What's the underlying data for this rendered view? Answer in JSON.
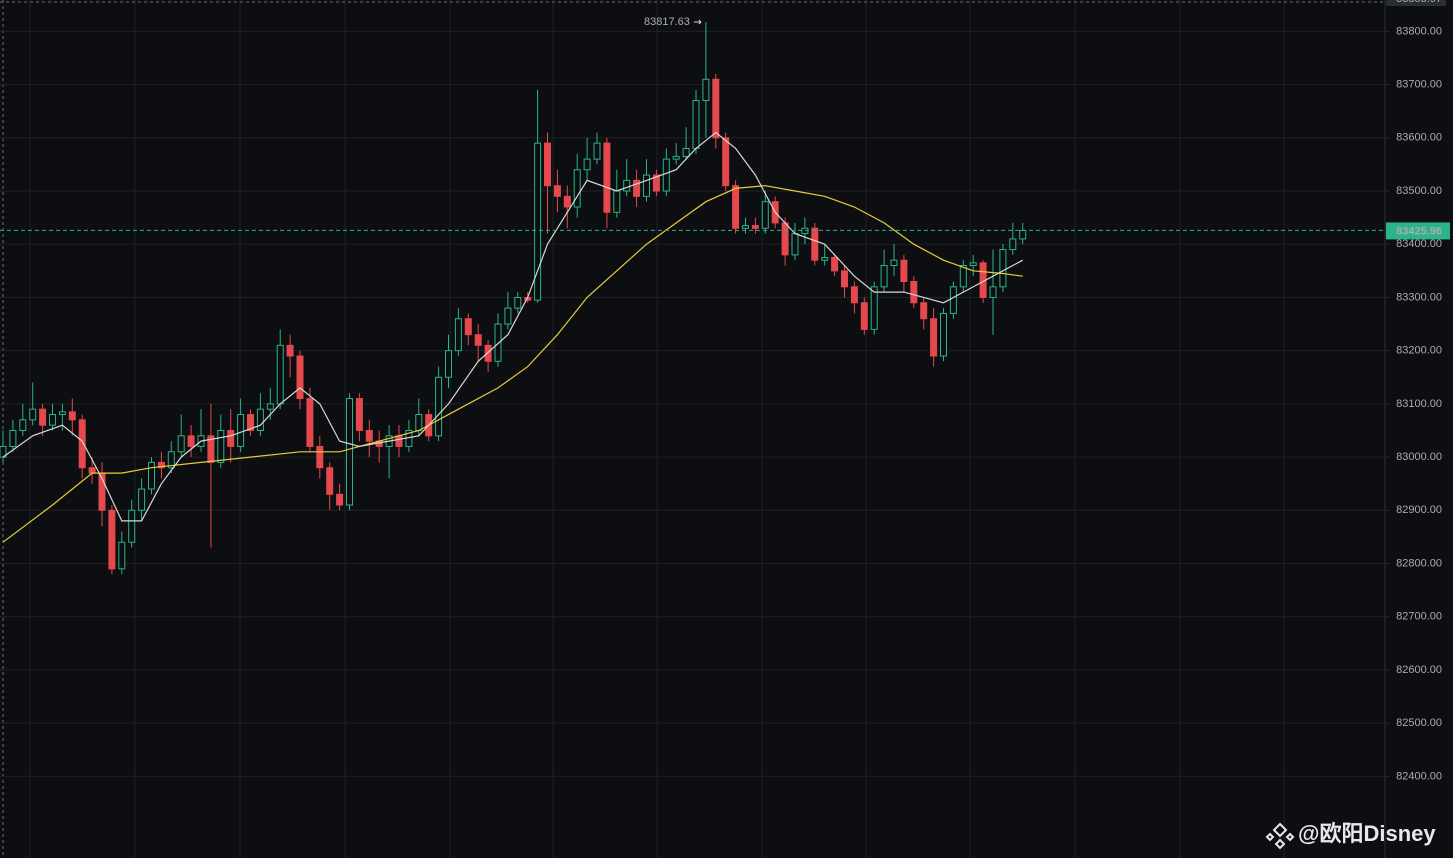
{
  "chart_data": {
    "type": "candlestick",
    "up_color": "#2bb38a",
    "down_color": "#e5484d",
    "open": [
      83000,
      83020,
      83050,
      83070,
      83090,
      83060,
      83080,
      83085,
      83070,
      82980,
      82970,
      82900,
      82790,
      82840,
      82900,
      82940,
      82990,
      82980,
      83010,
      83040,
      83020,
      83040,
      82990,
      83050,
      83020,
      83080,
      83050,
      83090,
      83100,
      83210,
      83190,
      83110,
      83020,
      82980,
      82930,
      82910,
      83110,
      83050,
      83030,
      83020,
      83040,
      83020,
      83050,
      83080,
      83040,
      83150,
      83200,
      83260,
      83230,
      83210,
      83180,
      83250,
      83280,
      83300,
      83295,
      83590,
      83510,
      83490,
      83470,
      83540,
      83560,
      83590,
      83460,
      83500,
      83520,
      83490,
      83530,
      83500,
      83560,
      83565,
      83580,
      83670,
      83710,
      83600,
      83510,
      83430,
      83435,
      83430,
      83480,
      83440,
      83380,
      83420,
      83430,
      83370,
      83375,
      83350,
      83320,
      83290,
      83240,
      83320,
      83360,
      83370,
      83330,
      83290,
      83260,
      83190,
      83270,
      83320,
      83360,
      83365,
      83300,
      83320,
      83390,
      83410
    ],
    "high": [
      83050,
      83070,
      83100,
      83140,
      83100,
      83100,
      83100,
      83110,
      83080,
      83000,
      82990,
      82910,
      82860,
      82920,
      82960,
      83000,
      83010,
      83030,
      83080,
      83060,
      83090,
      83100,
      83080,
      83090,
      83110,
      83090,
      83120,
      83130,
      83240,
      83230,
      83200,
      83130,
      83040,
      82990,
      82950,
      83120,
      83120,
      83070,
      83050,
      83060,
      83060,
      83070,
      83110,
      83090,
      83170,
      83230,
      83280,
      83270,
      83250,
      83220,
      83270,
      83310,
      83310,
      83310,
      83690,
      83610,
      83540,
      83510,
      83570,
      83600,
      83610,
      83600,
      83540,
      83560,
      83540,
      83560,
      83540,
      83580,
      83590,
      83620,
      83690,
      83817.63,
      83720,
      83610,
      83520,
      83450,
      83450,
      83500,
      83490,
      83450,
      83440,
      83450,
      83440,
      83400,
      83380,
      83360,
      83330,
      83300,
      83330,
      83390,
      83400,
      83380,
      83340,
      83300,
      83280,
      83280,
      83330,
      83370,
      83380,
      83370,
      83390,
      83400,
      83440,
      83440
    ],
    "low": [
      82990,
      83010,
      83040,
      83060,
      83040,
      83050,
      83050,
      83040,
      82960,
      82950,
      82870,
      82780,
      82780,
      82830,
      82880,
      82930,
      82960,
      82970,
      83000,
      83000,
      83010,
      82830,
      82980,
      82990,
      83010,
      83040,
      83040,
      83070,
      83090,
      83150,
      83090,
      83010,
      82960,
      82900,
      82900,
      82900,
      83030,
      83000,
      82990,
      82960,
      83000,
      83010,
      83040,
      83030,
      83030,
      83130,
      83190,
      83210,
      83180,
      83160,
      83170,
      83240,
      83270,
      83290,
      83290,
      83420,
      83460,
      83430,
      83450,
      83520,
      83550,
      83430,
      83450,
      83490,
      83470,
      83480,
      83490,
      83490,
      83550,
      83560,
      83570,
      83600,
      83580,
      83500,
      83420,
      83420,
      83420,
      83420,
      83430,
      83360,
      83370,
      83400,
      83360,
      83360,
      83340,
      83300,
      83270,
      83230,
      83230,
      83310,
      83340,
      83310,
      83280,
      83240,
      83170,
      83180,
      83260,
      83310,
      83340,
      83290,
      83230,
      83310,
      83380,
      83400
    ],
    "close": [
      83020,
      83050,
      83070,
      83090,
      83060,
      83080,
      83085,
      83070,
      82980,
      82970,
      82900,
      82790,
      82840,
      82900,
      82940,
      82990,
      82980,
      83010,
      83040,
      83020,
      83040,
      82990,
      83050,
      83020,
      83080,
      83050,
      83090,
      83100,
      83210,
      83190,
      83110,
      83020,
      82980,
      82930,
      82910,
      83110,
      83050,
      83030,
      83020,
      83040,
      83020,
      83050,
      83080,
      83040,
      83150,
      83200,
      83260,
      83230,
      83210,
      83180,
      83250,
      83280,
      83300,
      83295,
      83590,
      83510,
      83490,
      83470,
      83540,
      83560,
      83590,
      83460,
      83500,
      83520,
      83490,
      83530,
      83500,
      83560,
      83565,
      83580,
      83670,
      83710,
      83600,
      83510,
      83430,
      83435,
      83430,
      83480,
      83440,
      83380,
      83420,
      83430,
      83370,
      83375,
      83350,
      83320,
      83290,
      83240,
      83320,
      83360,
      83370,
      83330,
      83290,
      83260,
      83190,
      83270,
      83320,
      83360,
      83365,
      83300,
      83320,
      83390,
      83410,
      83425.96
    ],
    "ma_fast": {
      "color": "#d8d8d8",
      "x": [
        0,
        3,
        6,
        8,
        10,
        12,
        14,
        16,
        18,
        20,
        23,
        26,
        28,
        30,
        32,
        34,
        36,
        39,
        42,
        45,
        48,
        51,
        53,
        55,
        57,
        59,
        62,
        65,
        68,
        70,
        72,
        74,
        76,
        78,
        80,
        83,
        86,
        88,
        91,
        93,
        95,
        97,
        99,
        101,
        103
      ],
      "values": [
        83000,
        83040,
        83060,
        83030,
        82960,
        82880,
        82880,
        82950,
        83000,
        83030,
        83040,
        83060,
        83100,
        83130,
        83100,
        83030,
        83020,
        83030,
        83040,
        83100,
        83180,
        83230,
        83300,
        83400,
        83460,
        83520,
        83500,
        83520,
        83540,
        83580,
        83610,
        83580,
        83530,
        83460,
        83420,
        83400,
        83340,
        83310,
        83310,
        83300,
        83290,
        83310,
        83330,
        83350,
        83370
      ]
    },
    "ma_slow": {
      "color": "#e8cc3a",
      "x": [
        0,
        5,
        9,
        12,
        15,
        20,
        25,
        30,
        34,
        38,
        42,
        46,
        50,
        53,
        56,
        59,
        62,
        65,
        68,
        71,
        74,
        77,
        80,
        83,
        86,
        89,
        92,
        95,
        98,
        101,
        103
      ],
      "values": [
        82840,
        82910,
        82970,
        82970,
        82980,
        82990,
        83000,
        83010,
        83010,
        83030,
        83050,
        83090,
        83130,
        83170,
        83230,
        83300,
        83350,
        83400,
        83440,
        83480,
        83505,
        83510,
        83500,
        83490,
        83470,
        83440,
        83400,
        83370,
        83350,
        83345,
        83340
      ]
    },
    "ylim": [
      82246.6,
      83858.97
    ],
    "yticks": [
      {
        "value": 82400,
        "label": "82400.00"
      },
      {
        "value": 82500,
        "label": "82500.00"
      },
      {
        "value": 82600,
        "label": "82600.00"
      },
      {
        "value": 82700,
        "label": "82700.00"
      },
      {
        "value": 82800,
        "label": "82800.00"
      },
      {
        "value": 82900,
        "label": "82900.00"
      },
      {
        "value": 83000,
        "label": "83000.00"
      },
      {
        "value": 83100,
        "label": "83100.00"
      },
      {
        "value": 83200,
        "label": "83200.00"
      },
      {
        "value": 83300,
        "label": "83300.00"
      },
      {
        "value": 83400,
        "label": "83400.00"
      },
      {
        "value": 83500,
        "label": "83500.00"
      },
      {
        "value": 83600,
        "label": "83600.00"
      },
      {
        "value": 83700,
        "label": "83700.00"
      },
      {
        "value": 83800,
        "label": "83800.00"
      }
    ],
    "grid": true
  },
  "watermark": "@欧阳Disney"
}
